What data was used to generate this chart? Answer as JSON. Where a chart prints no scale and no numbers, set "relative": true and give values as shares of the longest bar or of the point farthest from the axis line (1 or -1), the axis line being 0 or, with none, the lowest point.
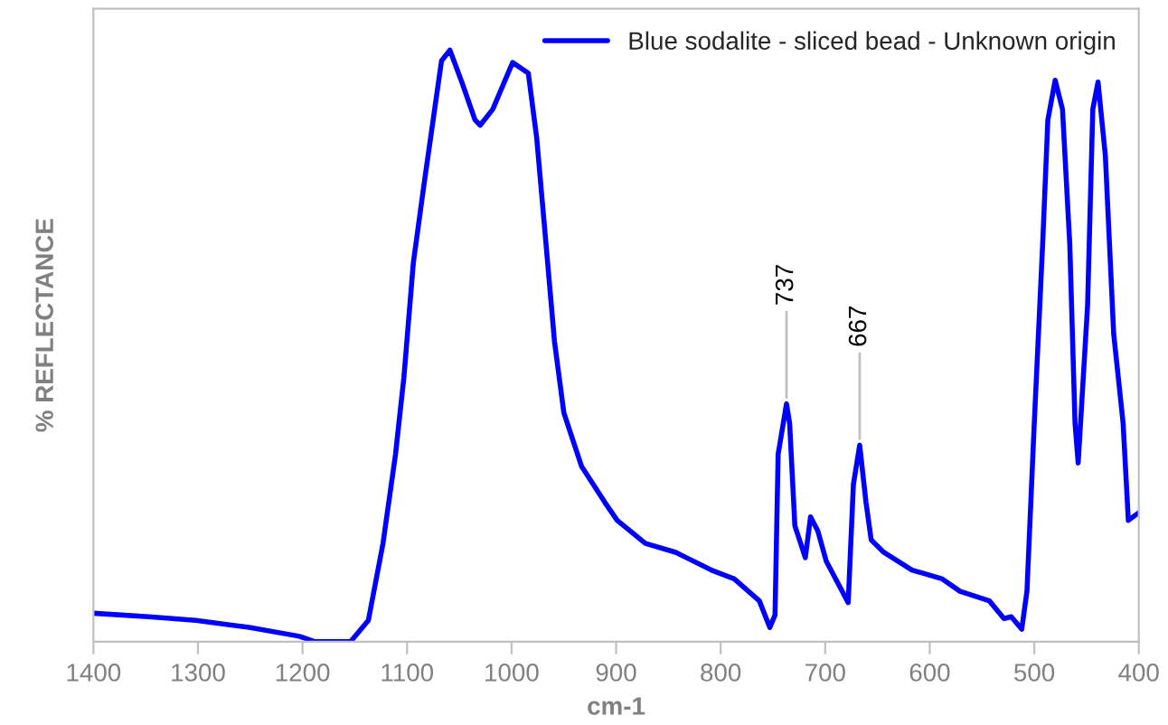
{
  "chart_data": {
    "type": "line",
    "relative": true,
    "xlabel": "cm-1",
    "ylabel": "% REFLECTANCE",
    "xlim": [
      1400,
      400
    ],
    "xticks": [
      1400,
      1300,
      1200,
      1100,
      1000,
      900,
      800,
      700,
      600,
      500,
      400
    ],
    "legend": "top right",
    "grid": false,
    "annotations": [
      {
        "text": "737",
        "x": 737,
        "y": 0.402
      },
      {
        "text": "667",
        "x": 667,
        "y": 0.332
      }
    ],
    "series": [
      {
        "name": "Blue sodalite - sliced bead - Unknown origin",
        "color": "#0000ff",
        "x": [
          1400,
          1347,
          1302,
          1251,
          1203,
          1188,
          1154,
          1137,
          1123,
          1111,
          1103,
          1094,
          1084,
          1076,
          1067,
          1059,
          1047,
          1035,
          1030,
          1018,
          999,
          984,
          976,
          967,
          959,
          950,
          933,
          911,
          899,
          872,
          843,
          809,
          787,
          763,
          753,
          748,
          745,
          737,
          734,
          729,
          719,
          714,
          707,
          699,
          678,
          673,
          667,
          661,
          656,
          644,
          617,
          588,
          571,
          543,
          529,
          522,
          512,
          507,
          500,
          492,
          487,
          480,
          473,
          466,
          461,
          458,
          449,
          444,
          439,
          432,
          424,
          415,
          410,
          400
        ],
        "values": [
          0.048,
          0.042,
          0.036,
          0.024,
          0.009,
          0,
          0,
          0.036,
          0.166,
          0.317,
          0.447,
          0.64,
          0.77,
          0.87,
          0.982,
          1.0,
          0.943,
          0.882,
          0.873,
          0.9,
          0.979,
          0.961,
          0.852,
          0.671,
          0.508,
          0.387,
          0.296,
          0.236,
          0.205,
          0.166,
          0.151,
          0.121,
          0.106,
          0.069,
          0.024,
          0.045,
          0.317,
          0.402,
          0.369,
          0.196,
          0.142,
          0.211,
          0.187,
          0.136,
          0.066,
          0.266,
          0.332,
          0.236,
          0.172,
          0.151,
          0.121,
          0.106,
          0.085,
          0.069,
          0.039,
          0.042,
          0.021,
          0.085,
          0.369,
          0.671,
          0.882,
          0.949,
          0.9,
          0.671,
          0.369,
          0.302,
          0.568,
          0.9,
          0.946,
          0.822,
          0.52,
          0.369,
          0.205,
          0.218
        ]
      }
    ]
  }
}
